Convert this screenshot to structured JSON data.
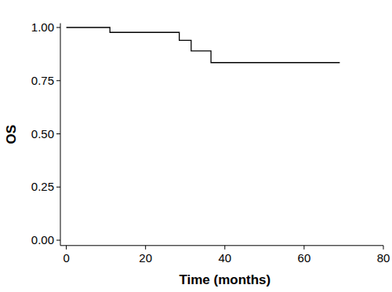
{
  "chart_data": {
    "type": "line",
    "line_style": "step",
    "x_label": "Time (months)",
    "y_label": "OS",
    "x": [
      0,
      11,
      28.5,
      31.5,
      36.5,
      69
    ],
    "values": [
      1.0,
      0.977,
      0.94,
      0.89,
      0.835,
      0.835
    ],
    "color": "#000000",
    "xlim": [
      -1.5,
      80
    ],
    "xticks": [
      0,
      20,
      40,
      60,
      80
    ],
    "ylim": [
      -0.025,
      1.02
    ],
    "yticks": [
      {
        "value": 0,
        "label": "0.00"
      },
      {
        "value": 0.25,
        "label": "0.25"
      },
      {
        "value": 0.5,
        "label": "0.50"
      },
      {
        "value": 0.75,
        "label": "0.75"
      },
      {
        "value": 1,
        "label": "1.00"
      }
    ],
    "grid": false
  }
}
